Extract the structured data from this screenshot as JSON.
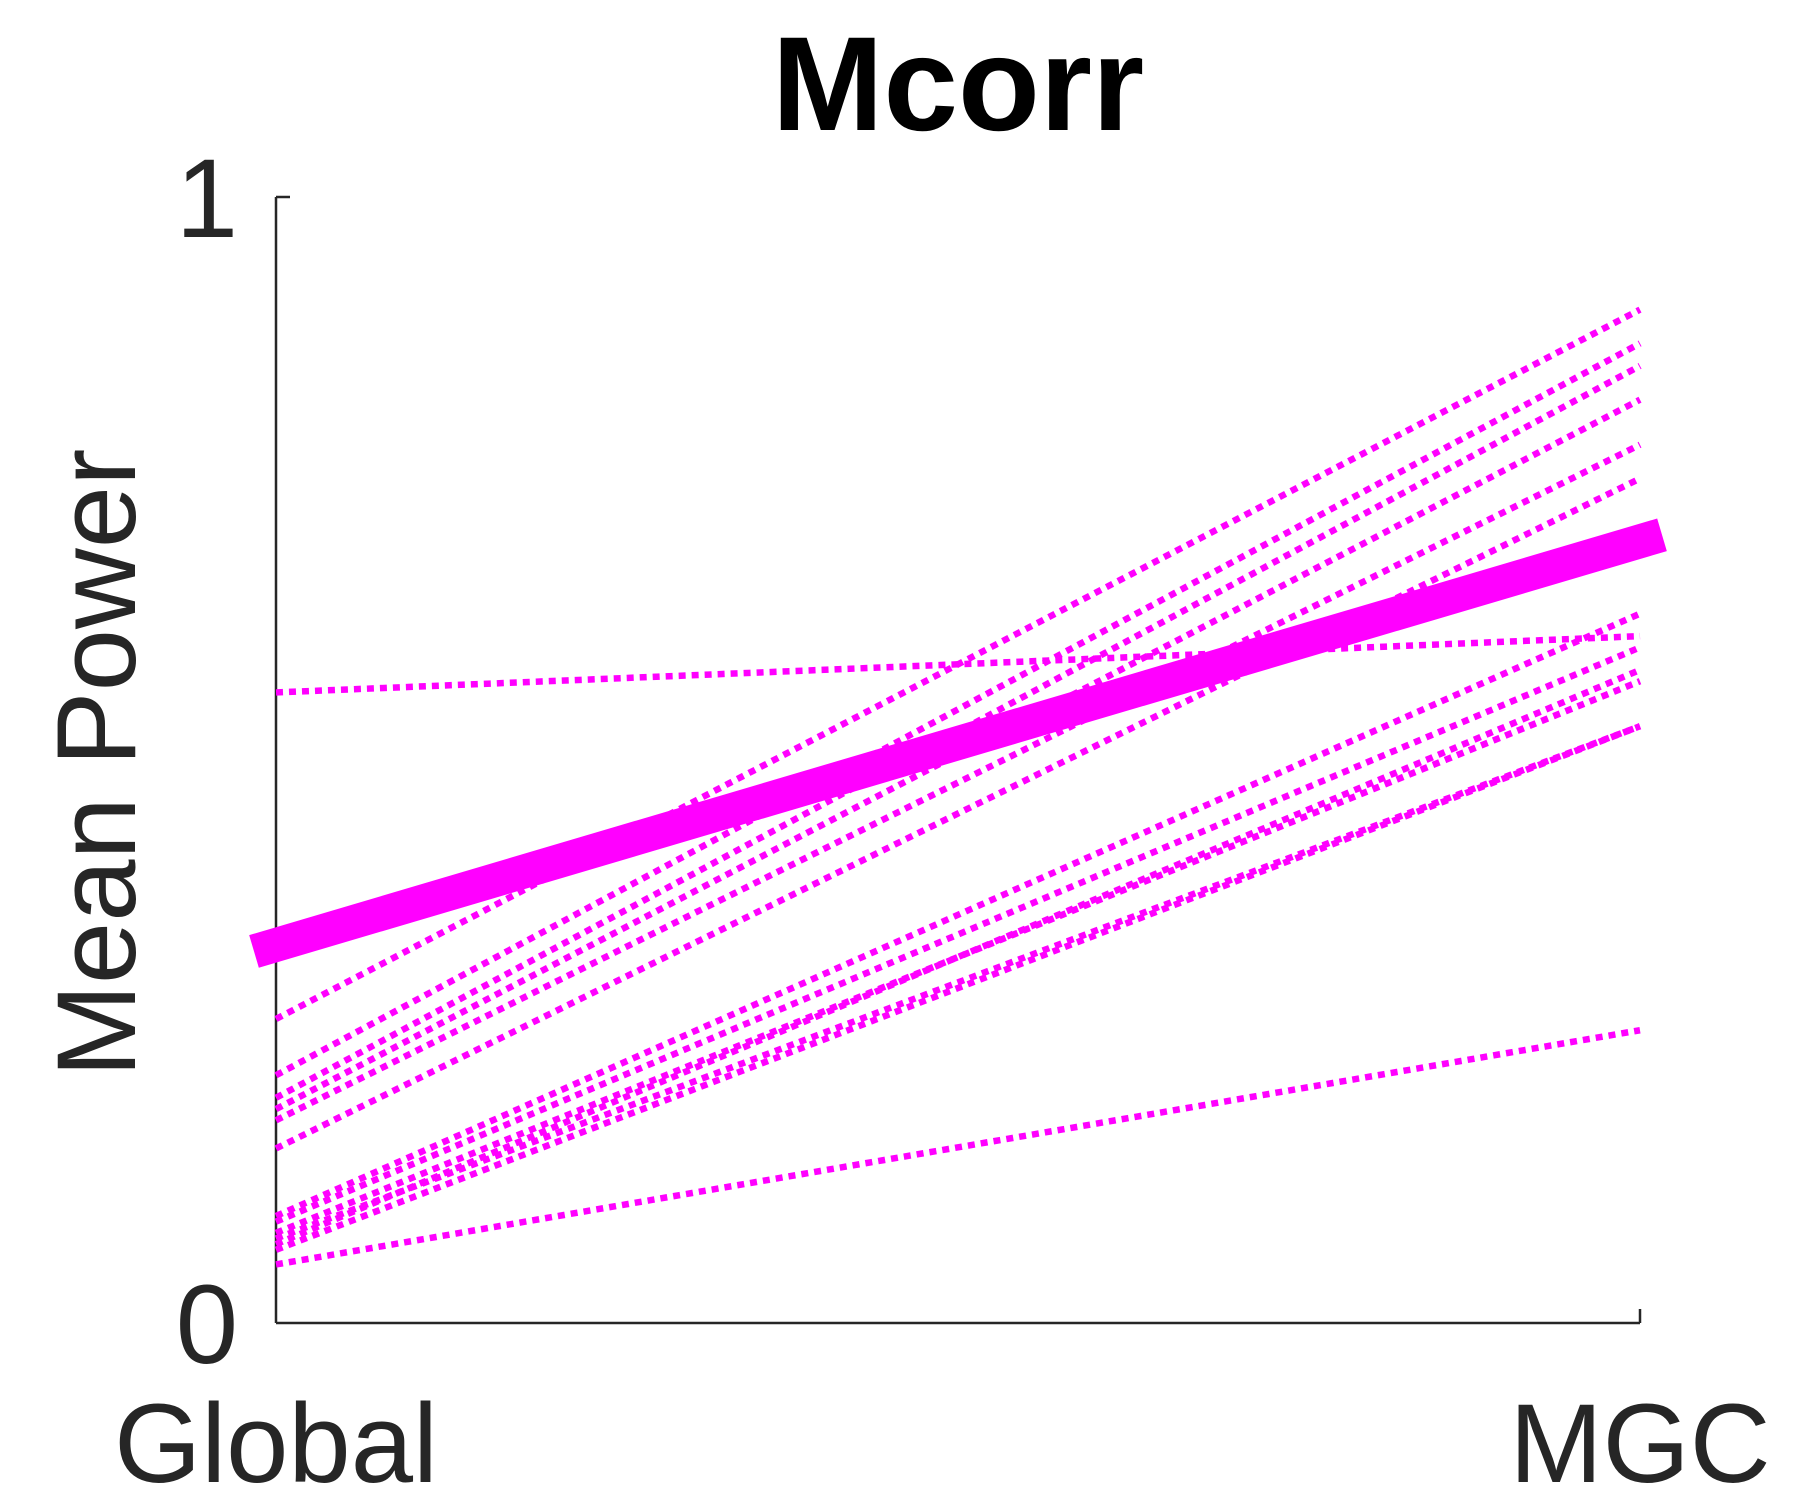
{
  "chart_data": {
    "type": "line",
    "title": "Mcorr",
    "xlabel": "",
    "ylabel": "Mean Power",
    "categories": [
      "Global",
      "MGC"
    ],
    "ylim": [
      0,
      1
    ],
    "yticks": [
      0,
      1
    ],
    "grid": false,
    "legend": "none",
    "colors": {
      "series": "#ff00ff",
      "axis": "#262626",
      "title": "#000000"
    },
    "series": [
      {
        "values": [
          0.33,
          0.7
        ],
        "style": "solid-thick"
      },
      {
        "values": [
          0.56,
          0.61
        ],
        "style": "dotted"
      },
      {
        "values": [
          0.27,
          0.9
        ],
        "style": "dotted"
      },
      {
        "values": [
          0.22,
          0.87
        ],
        "style": "dotted"
      },
      {
        "values": [
          0.2,
          0.85
        ],
        "style": "dotted"
      },
      {
        "values": [
          0.19,
          0.82
        ],
        "style": "dotted"
      },
      {
        "values": [
          0.18,
          0.78
        ],
        "style": "dotted"
      },
      {
        "values": [
          0.155,
          0.75
        ],
        "style": "dotted"
      },
      {
        "values": [
          0.095,
          0.63
        ],
        "style": "dotted"
      },
      {
        "values": [
          0.09,
          0.6
        ],
        "style": "dotted"
      },
      {
        "values": [
          0.08,
          0.57
        ],
        "style": "dotted"
      },
      {
        "values": [
          0.075,
          0.53
        ],
        "style": "dotted"
      },
      {
        "values": [
          0.07,
          0.58
        ],
        "style": "dotted"
      },
      {
        "values": [
          0.065,
          0.53
        ],
        "style": "dotted"
      },
      {
        "values": [
          0.052,
          0.26
        ],
        "style": "dotted"
      }
    ]
  }
}
